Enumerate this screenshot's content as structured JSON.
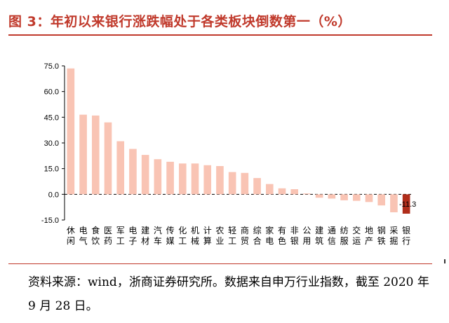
{
  "header": {
    "title": "图 3：年初以来银行涨跌幅处于各类板块倒数第一（%）"
  },
  "footer": {
    "source": "资料来源：wind，浙商证券研究所。数据来自申万行业指数，截至 2020 年 9 月 28 日。"
  },
  "colors": {
    "title": "#c0392b",
    "bar": "#f9c4b4",
    "highlight": "#b02d1a"
  },
  "chart_data": {
    "type": "bar",
    "title": "",
    "xlabel": "",
    "ylabel": "",
    "ylim": [
      -15.0,
      75.0
    ],
    "ytick_labels": [
      "75.0",
      "60.0",
      "45.0",
      "30.0",
      "15.0",
      "0.0",
      "-15.0"
    ],
    "yticks": [
      75,
      60,
      45,
      30,
      15,
      0,
      -15
    ],
    "categories": [
      "休闲",
      "电气",
      "食饮",
      "医药",
      "军工",
      "电子",
      "建材",
      "汽车",
      "传媒",
      "化工",
      "机械",
      "计算",
      "农业",
      "轻工",
      "商贸",
      "综合",
      "家电",
      "有色",
      "非银",
      "公用",
      "建筑",
      "通信",
      "纺服",
      "交运",
      "地产",
      "钢铁",
      "采掘",
      "银行"
    ],
    "values": [
      73.5,
      46.5,
      46.0,
      42.0,
      31.0,
      26.5,
      23.0,
      20.5,
      19.0,
      18.0,
      18.0,
      17.0,
      16.5,
      13.0,
      12.5,
      9.5,
      6.0,
      3.5,
      3.0,
      0.5,
      -2.0,
      -2.5,
      -3.5,
      -3.8,
      -4.5,
      -6.5,
      -10.5,
      -11.3
    ],
    "highlight_category": "银行",
    "data_labels": [
      {
        "category": "银行",
        "text": "-11.3"
      }
    ],
    "grid": false,
    "zero_line": "dashed"
  }
}
